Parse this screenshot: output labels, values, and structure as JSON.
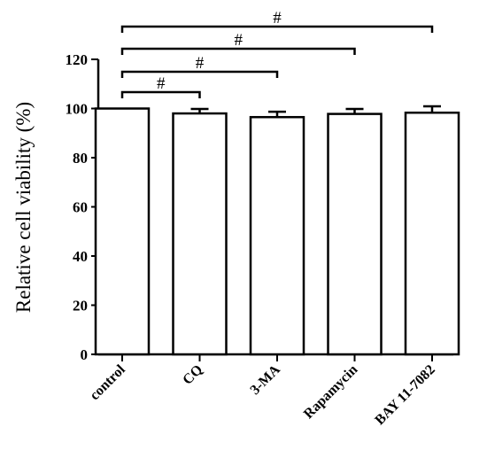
{
  "chart_data": {
    "type": "bar",
    "categories": [
      "control",
      "CQ",
      "3-MA",
      "Rapamycin",
      "BAY 11-7082"
    ],
    "values": [
      100,
      98,
      96.5,
      97.8,
      98.3
    ],
    "errors": [
      0,
      1.8,
      2.2,
      2.0,
      2.6
    ],
    "title": "",
    "xlabel": "",
    "ylabel": "Relative cell viability (%)",
    "ylim": [
      0,
      120
    ],
    "yticks": [
      0,
      20,
      40,
      60,
      80,
      100,
      120
    ],
    "grid": false,
    "legend": "none",
    "significance": [
      {
        "from": 0,
        "to": 1,
        "label": "#"
      },
      {
        "from": 0,
        "to": 2,
        "label": "#"
      },
      {
        "from": 0,
        "to": 3,
        "label": "#"
      },
      {
        "from": 0,
        "to": 4,
        "label": "#"
      }
    ]
  }
}
